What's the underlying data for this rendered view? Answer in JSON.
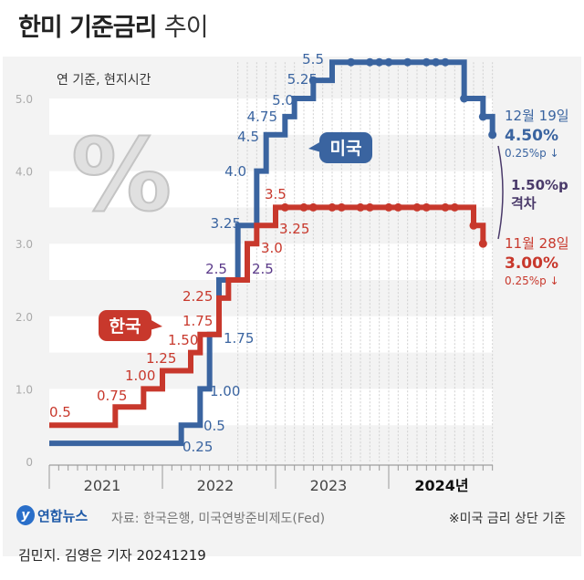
{
  "title": {
    "main": "한미 기준금리",
    "sub": "추이"
  },
  "chart_data": {
    "type": "line",
    "step": true,
    "unit_note": "연 기준, 현지시간",
    "ylim": [
      0,
      5.5
    ],
    "yticks": [
      "0",
      "1.0",
      "2.0",
      "3.0",
      "4.0",
      "5.0"
    ],
    "xlim": [
      "2021-01",
      "2024-12"
    ],
    "xticks": [
      "2021",
      "2022",
      "2023",
      "2024년"
    ],
    "grid": "horizontal bands",
    "series": [
      {
        "name": "미국",
        "color": "#3a64a0",
        "steps": [
          {
            "date": "2021-01",
            "value": 0.25,
            "label": "0.25"
          },
          {
            "date": "2022-03",
            "value": 0.5,
            "label": "0.5"
          },
          {
            "date": "2022-05",
            "value": 1.0,
            "label": "1.00"
          },
          {
            "date": "2022-06",
            "value": 1.75,
            "label": "1.75"
          },
          {
            "date": "2022-07",
            "value": 2.5,
            "label": "2.5"
          },
          {
            "date": "2022-09",
            "value": 3.25,
            "label": "3.25"
          },
          {
            "date": "2022-11",
            "value": 4.0,
            "label": "4.0"
          },
          {
            "date": "2022-12",
            "value": 4.5,
            "label": "4.5"
          },
          {
            "date": "2023-02",
            "value": 4.75,
            "label": "4.75"
          },
          {
            "date": "2023-03",
            "value": 5.0,
            "label": "5.0"
          },
          {
            "date": "2023-05",
            "value": 5.25,
            "label": "5.25"
          },
          {
            "date": "2023-07",
            "value": 5.5,
            "label": "5.5"
          },
          {
            "date": "2024-09",
            "value": 5.0,
            "label": ""
          },
          {
            "date": "2024-11",
            "value": 4.75,
            "label": ""
          },
          {
            "date": "2024-12",
            "value": 4.5,
            "label": ""
          }
        ],
        "markers": [
          "2023-05",
          "2023-09",
          "2023-11",
          "2023-12",
          "2024-01",
          "2024-03",
          "2024-05",
          "2024-06",
          "2024-07",
          "2024-09",
          "2024-11",
          "2024-12"
        ],
        "callout": {
          "date": "12월 19일",
          "value": "4.50%",
          "change": "0.25%p ↓"
        }
      },
      {
        "name": "한국",
        "color": "#c8382c",
        "steps": [
          {
            "date": "2021-01",
            "value": 0.5,
            "label": "0.5"
          },
          {
            "date": "2021-08",
            "value": 0.75,
            "label": "0.75"
          },
          {
            "date": "2021-11",
            "value": 1.0,
            "label": "1.00"
          },
          {
            "date": "2022-01",
            "value": 1.25,
            "label": "1.25"
          },
          {
            "date": "2022-04",
            "value": 1.5,
            "label": "1.50"
          },
          {
            "date": "2022-05",
            "value": 1.75,
            "label": "1.75"
          },
          {
            "date": "2022-07",
            "value": 2.25,
            "label": "2.25"
          },
          {
            "date": "2022-08",
            "value": 2.5,
            "label": "2.5"
          },
          {
            "date": "2022-10",
            "value": 3.0,
            "label": "3.0"
          },
          {
            "date": "2022-11",
            "value": 3.25,
            "label": "3.25"
          },
          {
            "date": "2023-01",
            "value": 3.5,
            "label": "3.5"
          },
          {
            "date": "2024-10",
            "value": 3.25,
            "label": ""
          },
          {
            "date": "2024-11",
            "value": 3.0,
            "label": ""
          }
        ],
        "markers": [
          "2023-02",
          "2023-04",
          "2023-05",
          "2023-07",
          "2023-08",
          "2023-10",
          "2023-11",
          "2024-01",
          "2024-02",
          "2024-04",
          "2024-05",
          "2024-07",
          "2024-08",
          "2024-10",
          "2024-11"
        ],
        "callout": {
          "date": "11월 28일",
          "value": "3.00%",
          "change": "0.25%p ↓"
        }
      }
    ],
    "gap": {
      "value": "1.50%p",
      "label": "격차",
      "color": "#4a3a6a"
    }
  },
  "footer": {
    "logo": "연합뉴스",
    "source": "자료: 한국은행, 미국연방준비제도(Fed)",
    "note": "※미국 금리 상단 기준",
    "credit": "김민지. 김영은 기자  20241219"
  }
}
